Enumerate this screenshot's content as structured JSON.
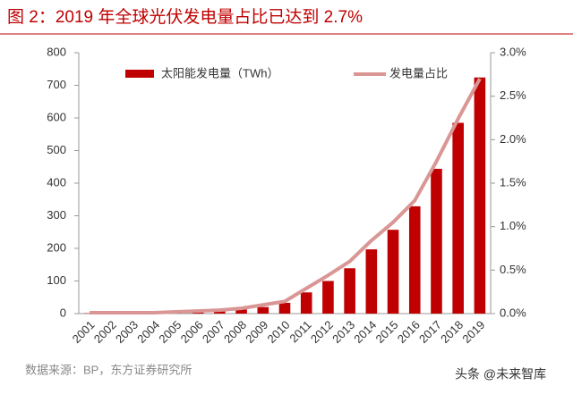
{
  "chart_data": {
    "type": "bar_line",
    "title": "图 2：2019 年全球光伏发电量占比已达到 2.7%",
    "source": "数据来源：BP，东方证券研究所",
    "watermark": "头条 @未来智库",
    "categories": [
      "2001",
      "2002",
      "2003",
      "2004",
      "2005",
      "2006",
      "2007",
      "2008",
      "2009",
      "2010",
      "2011",
      "2012",
      "2013",
      "2014",
      "2015",
      "2016",
      "2017",
      "2018",
      "2019"
    ],
    "series": [
      {
        "name": "太阳能发电量（TWh）",
        "color": "#c00000",
        "type": "bar",
        "values": [
          1,
          1,
          1.5,
          2,
          3.7,
          5.6,
          7.5,
          12.5,
          20,
          33,
          65,
          100,
          139,
          197,
          257,
          329,
          444,
          585,
          724
        ]
      },
      {
        "name": "发电量占比",
        "color": "#d99694",
        "type": "line",
        "axis": "y2",
        "values": [
          0.01,
          0.01,
          0.01,
          0.01,
          0.02,
          0.03,
          0.04,
          0.06,
          0.1,
          0.14,
          0.29,
          0.44,
          0.6,
          0.84,
          1.05,
          1.3,
          1.75,
          2.24,
          2.7
        ]
      }
    ],
    "ylim": [
      0,
      800
    ],
    "yticks": [
      0,
      100,
      200,
      300,
      400,
      500,
      600,
      700,
      800
    ],
    "y2lim": [
      0,
      3
    ],
    "y2ticks": [
      {
        "value": 0,
        "label": "0.0%"
      },
      {
        "value": 0.5,
        "label": "0.5%"
      },
      {
        "value": 1,
        "label": "1.0%"
      },
      {
        "value": 1.5,
        "label": "1.5%"
      },
      {
        "value": 2,
        "label": "2.0%"
      },
      {
        "value": 2.5,
        "label": "2.5%"
      },
      {
        "value": 3,
        "label": "3.0%"
      }
    ],
    "legend": "top"
  }
}
